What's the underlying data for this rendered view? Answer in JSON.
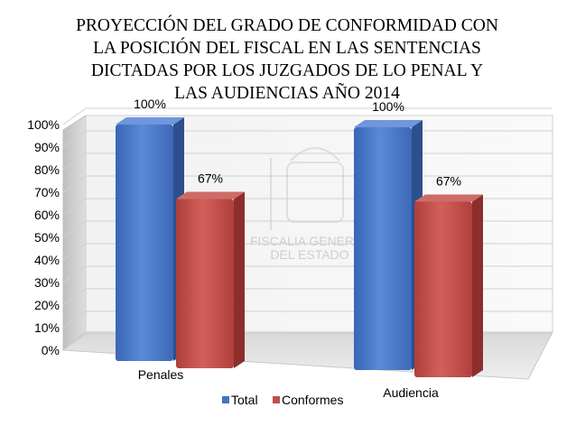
{
  "chart_data": {
    "type": "bar",
    "title_lines": [
      "PROYECCIÓN DEL GRADO DE CONFORMIDAD CON",
      "LA POSICIÓN DEL FISCAL EN LAS SENTENCIAS",
      "DICTADAS POR LOS JUZGADOS DE LO PENAL Y",
      "LAS AUDIENCIAS AÑO 2014"
    ],
    "categories": [
      "Penales",
      "Audiencia"
    ],
    "series": [
      {
        "name": "Total",
        "values": [
          100,
          100
        ],
        "labels": [
          "100%",
          "100%"
        ],
        "color": "#4472C4"
      },
      {
        "name": "Conformes",
        "values": [
          67,
          67
        ],
        "labels": [
          "67%",
          "67%"
        ],
        "color": "#C0504D"
      }
    ],
    "y_ticks": [
      "0%",
      "10%",
      "20%",
      "30%",
      "40%",
      "50%",
      "60%",
      "70%",
      "80%",
      "90%",
      "100%"
    ],
    "ylim": [
      0,
      100
    ],
    "grid": true,
    "legend": "bottom",
    "watermark_text": [
      "FISCALIA GENERAL",
      "DEL ESTADO"
    ]
  }
}
